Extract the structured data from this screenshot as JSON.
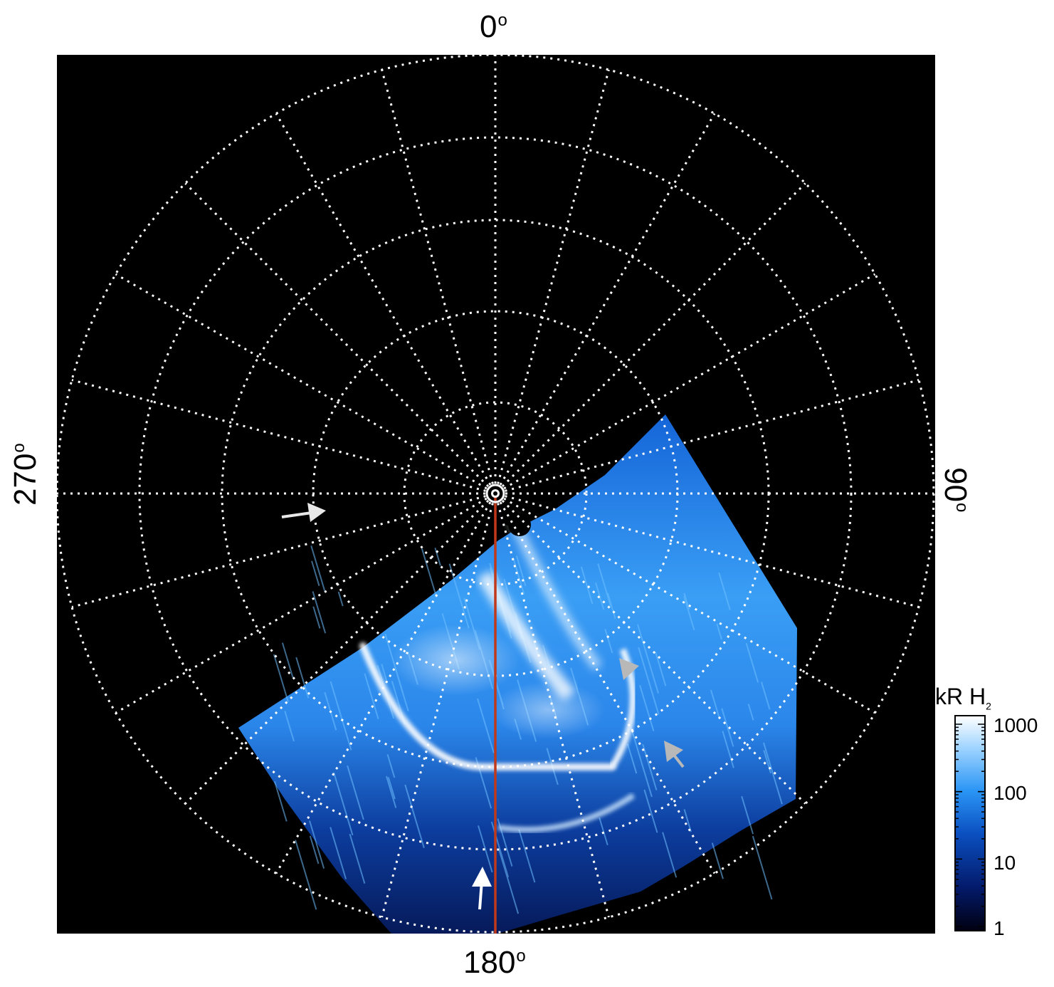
{
  "axis_labels": {
    "top": "0",
    "bottom": "180",
    "left": "270",
    "right": "90",
    "degree_symbol": "o"
  },
  "colorbar": {
    "title_main": "kR H",
    "title_sub": "2",
    "ticks": [
      "1000",
      "100",
      "10",
      "1"
    ],
    "scale": "log"
  },
  "colors": {
    "background": "#000000",
    "grid": "#ffffff",
    "meridian_line": "#c0391b",
    "aurora_low": "#00002e",
    "aurora_mid": "#1e88f0",
    "aurora_high": "#ffffff",
    "arrow_white": "#ffffff",
    "arrow_gray": "#b8b8b8"
  },
  "icons": [
    "arrow-icon",
    "center-marker-icon"
  ]
}
